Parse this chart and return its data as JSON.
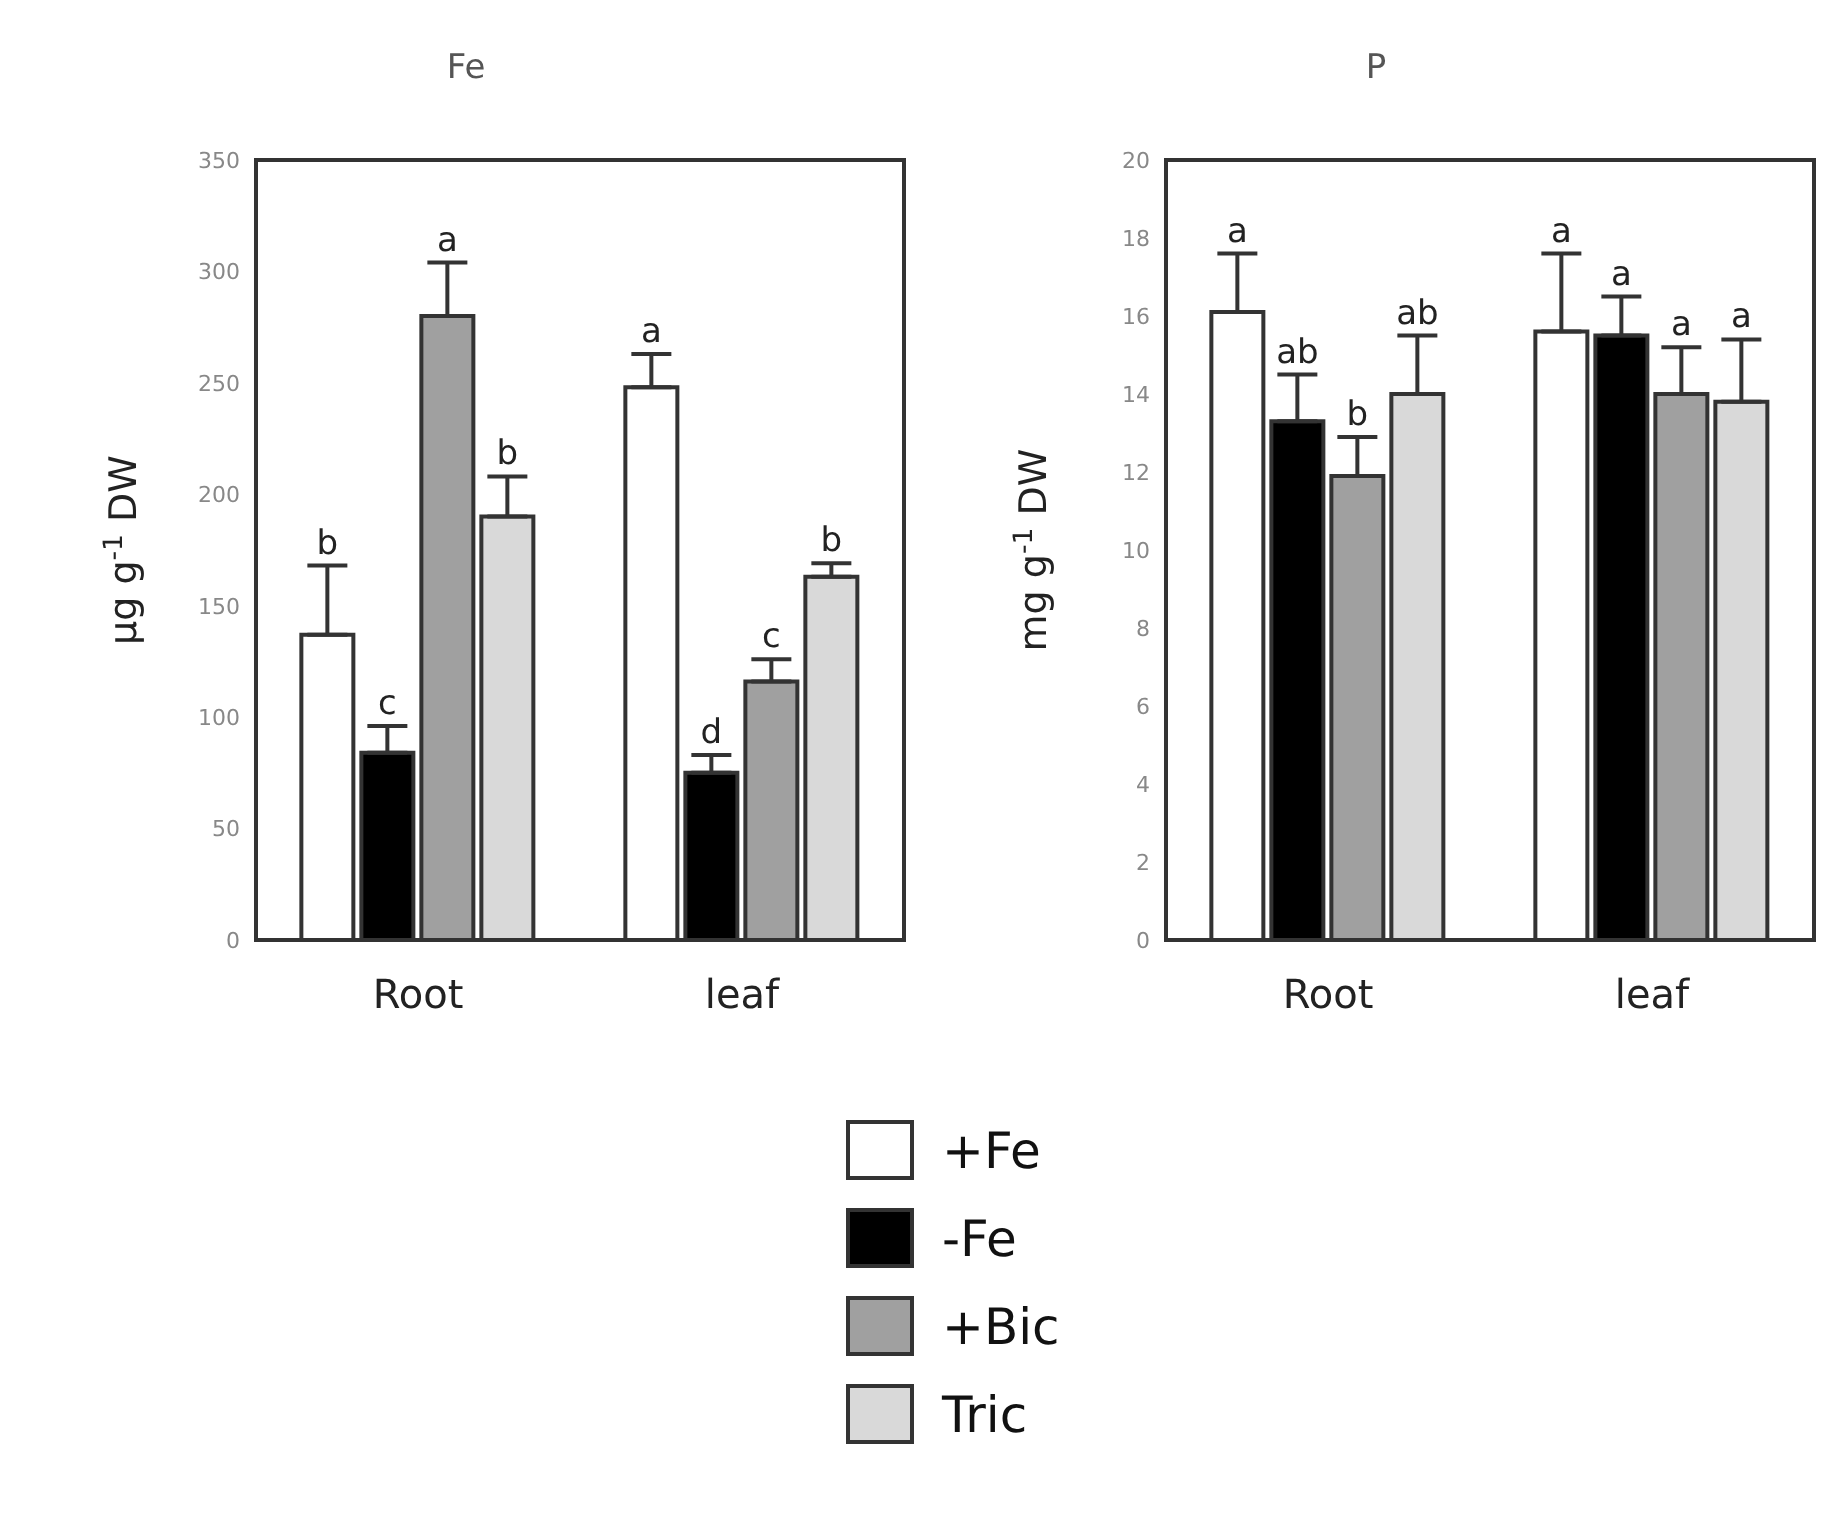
{
  "chart_data": [
    {
      "type": "bar",
      "title": "Fe",
      "ylabel": "μg g$^{-1}$ DW",
      "categories": [
        "Root",
        "leaf"
      ],
      "ylim": [
        0,
        350
      ],
      "yticks": [
        0,
        50,
        100,
        150,
        200,
        250,
        300,
        350
      ],
      "legend": "bottom",
      "series": [
        {
          "name": "+Fe",
          "color": "#ffffff",
          "values": [
            137,
            248
          ],
          "errors": [
            [
              137,
              168
            ],
            [
              248,
              263
            ]
          ],
          "value_labels": [
            "b",
            "a"
          ]
        },
        {
          "name": "-Fe",
          "color": "#000000",
          "values": [
            84,
            75
          ],
          "errors": [
            [
              84,
              96
            ],
            [
              75,
              83
            ]
          ],
          "value_labels": [
            "c",
            "d"
          ]
        },
        {
          "name": "+Bic",
          "color": "#a0a0a0",
          "values": [
            280,
            116
          ],
          "errors": [
            [
              280,
              304
            ],
            [
              116,
              126
            ]
          ],
          "value_labels": [
            "a",
            "c"
          ]
        },
        {
          "name": "Tric",
          "color": "#d9d9d9",
          "values": [
            190,
            163
          ],
          "errors": [
            [
              190,
              208
            ],
            [
              163,
              169
            ]
          ],
          "value_labels": [
            "b",
            "b"
          ]
        }
      ]
    },
    {
      "type": "bar",
      "title": "P",
      "ylabel": "mg g$^{-1}$ DW",
      "categories": [
        "Root",
        "leaf"
      ],
      "ylim": [
        0,
        20
      ],
      "yticks": [
        0,
        2,
        4,
        6,
        8,
        10,
        12,
        14,
        16,
        18,
        20
      ],
      "series": [
        {
          "color": "#ffffff",
          "values": [
            16.1,
            15.6
          ],
          "errors": [
            [
              16.1,
              17.6
            ],
            [
              15.6,
              17.6
            ]
          ],
          "value_labels": [
            "a",
            "a"
          ]
        },
        {
          "color": "#000000",
          "values": [
            13.3,
            15.5
          ],
          "errors": [
            [
              13.3,
              14.5
            ],
            [
              15.5,
              16.5
            ]
          ],
          "value_labels": [
            "ab",
            "a"
          ]
        },
        {
          "color": "#a0a0a0",
          "values": [
            11.9,
            14.0
          ],
          "errors": [
            [
              11.9,
              12.9
            ],
            [
              14.0,
              15.2
            ]
          ],
          "value_labels": [
            "b",
            "a"
          ]
        },
        {
          "color": "#d9d9d9",
          "values": [
            14.0,
            13.8
          ],
          "errors": [
            [
              14.0,
              15.5
            ],
            [
              13.8,
              15.4
            ]
          ],
          "value_labels": [
            "ab",
            "a"
          ]
        }
      ]
    }
  ]
}
